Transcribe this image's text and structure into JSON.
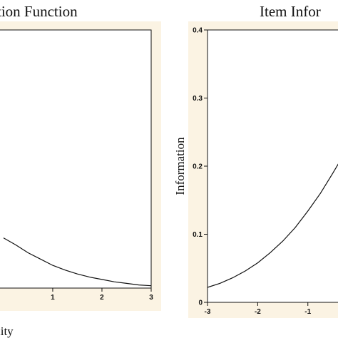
{
  "chart_data": [
    {
      "type": "line",
      "title": "tion Function",
      "xlabel": "lity",
      "ylabel": "",
      "xlim": [
        -0.1,
        3
      ],
      "x_ticks": [
        "1",
        "2",
        "3"
      ],
      "y_ticks": [],
      "grid": false,
      "series": [
        {
          "x": [
            0,
            0.25,
            0.5,
            0.75,
            1,
            1.25,
            1.5,
            1.75,
            2,
            2.25,
            2.5,
            2.75,
            3
          ],
          "y": [
            0.64,
            0.55,
            0.45,
            0.37,
            0.29,
            0.23,
            0.18,
            0.14,
            0.11,
            0.08,
            0.06,
            0.04,
            0.03
          ]
        }
      ]
    },
    {
      "type": "line",
      "title": "Item Infor",
      "xlabel": "",
      "ylabel": "Information",
      "xlim": [
        -3,
        -0.3
      ],
      "ylim": [
        0,
        0.4
      ],
      "x_ticks": [
        "-3",
        "-2",
        "-1"
      ],
      "y_ticks": [
        "0",
        "0.1",
        "0.2",
        "0.3",
        "0.4"
      ],
      "grid": false,
      "series": [
        {
          "x": [
            -3,
            -2.75,
            -2.5,
            -2.25,
            -2,
            -1.75,
            -1.5,
            -1.25,
            -1,
            -0.75,
            -0.5,
            -0.3
          ],
          "y": [
            0.022,
            0.028,
            0.036,
            0.046,
            0.058,
            0.073,
            0.09,
            0.11,
            0.134,
            0.16,
            0.19,
            0.215
          ]
        }
      ]
    }
  ],
  "colors": {
    "panel_background": "#fbf3e3",
    "line": "#111111"
  }
}
